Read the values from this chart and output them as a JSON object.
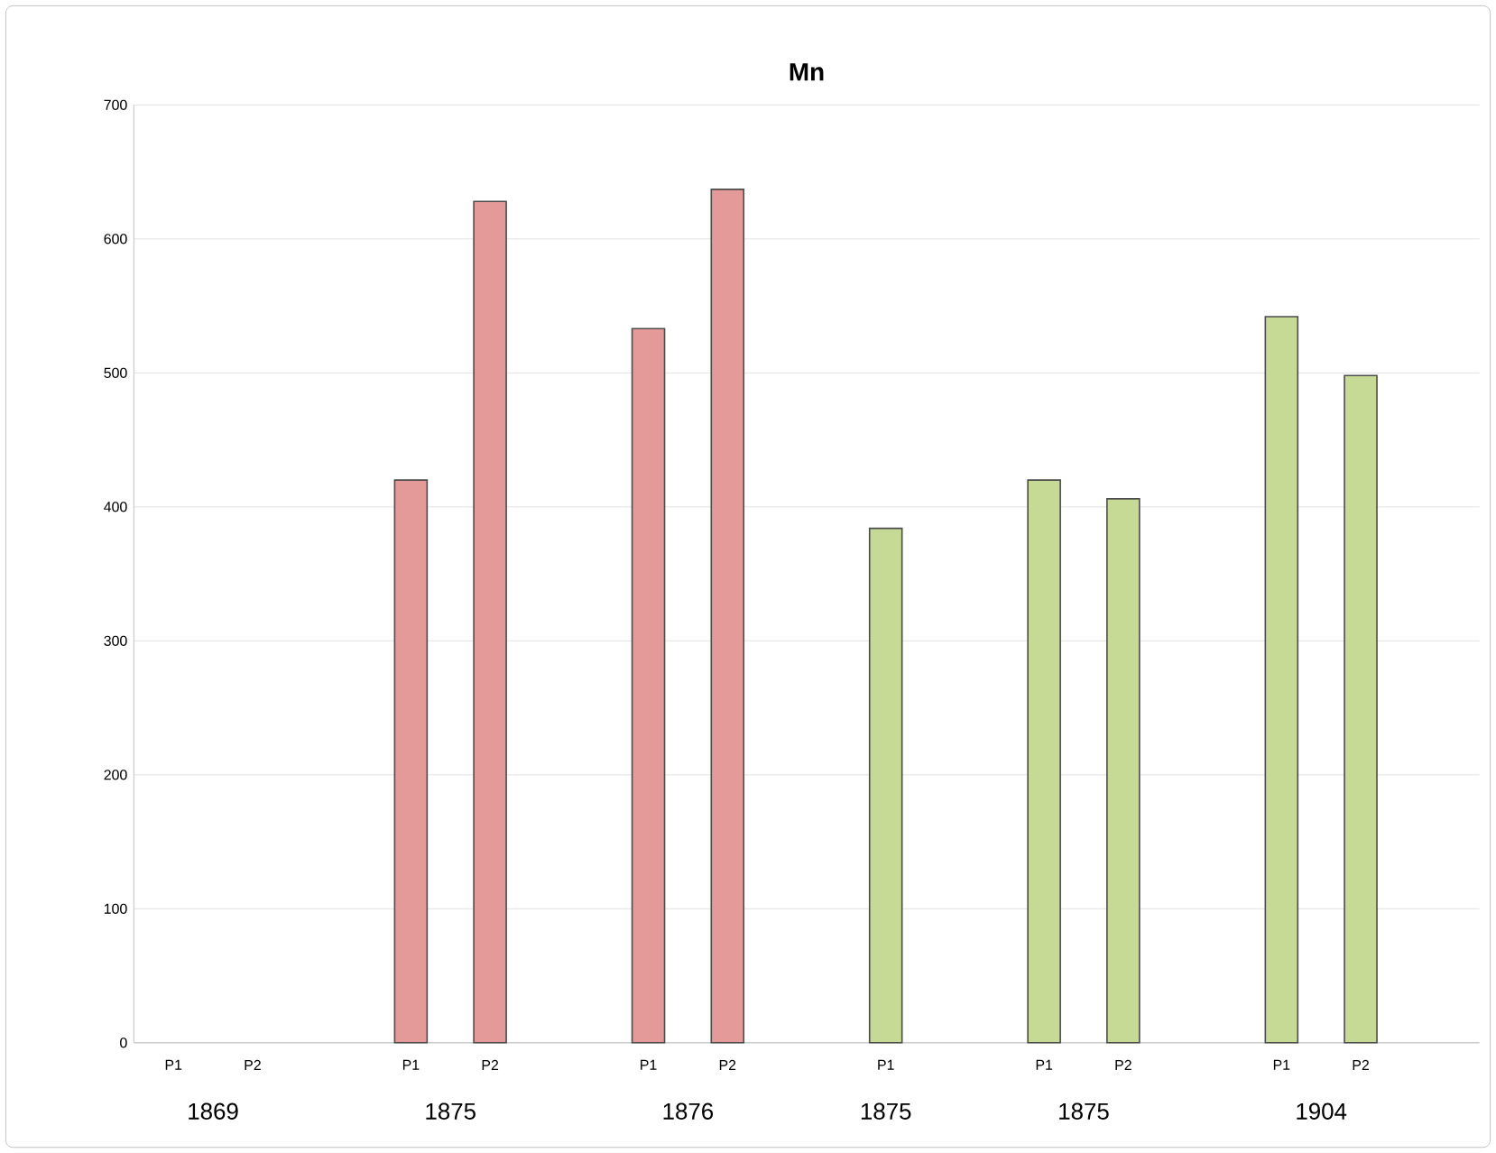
{
  "chart_data": {
    "type": "bar",
    "title": "Mn",
    "categories": [
      "P1",
      "P2",
      null,
      "P1",
      "P2",
      null,
      "P1",
      "P2",
      null,
      "P1",
      null,
      "P1",
      "P2",
      null,
      "P1",
      "P2",
      null
    ],
    "values": [
      null,
      null,
      null,
      420,
      628,
      null,
      533,
      637,
      null,
      384,
      null,
      420,
      406,
      null,
      542,
      498,
      null
    ],
    "colors": [
      "#e39a99",
      "#e39a99",
      "#e39a99",
      "#e39a99",
      "#e39a99",
      "#e39a99",
      "#e39a99",
      "#e39a99",
      "#e39a99",
      "#c6da96",
      "#c6da96",
      "#c6da96",
      "#c6da96",
      "#c6da96",
      "#c6da96",
      "#c6da96",
      "#c6da96"
    ],
    "annotations": [
      "1869",
      "1875",
      "1876",
      "1875",
      "1875",
      "1904"
    ],
    "ylim": [
      0,
      700
    ],
    "yticks": [
      0,
      100,
      200,
      300,
      400,
      500,
      600,
      700
    ],
    "grid": "y"
  }
}
